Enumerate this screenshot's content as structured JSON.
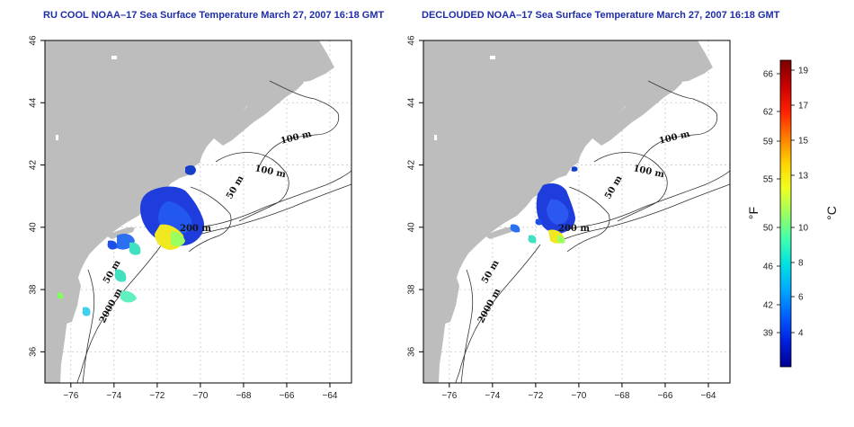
{
  "titles": {
    "left": "RU COOL NOAA–17 Sea Surface Temperature March 27, 2007 16:18 GMT",
    "right": "DECLOUDED NOAA–17 Sea Surface Temperature March 27, 2007 16:18 GMT"
  },
  "axes": {
    "lon_ticks": [
      -76,
      -74,
      -72,
      -70,
      -68,
      -66,
      -64
    ],
    "lat_ticks": [
      36,
      38,
      40,
      42,
      44,
      46
    ],
    "lon_range": [
      -77.2,
      -63.0
    ],
    "lat_range": [
      35.0,
      46.0
    ]
  },
  "contour_labels": [
    "100 m",
    "100 m",
    "50 m",
    "200 m",
    "50 m",
    "2000 m"
  ],
  "colorbar": {
    "fahrenheit_ticks": [
      "66",
      "62",
      "59",
      "55",
      "50",
      "46",
      "42",
      "39"
    ],
    "celsius_ticks": [
      "19",
      "17",
      "15",
      "13",
      "10",
      "8",
      "6",
      "4"
    ],
    "fahrenheit_unit": "°F",
    "celsius_unit": "°C",
    "colors": [
      "#7a0000",
      "#c80000",
      "#ff2000",
      "#ff7a00",
      "#ffd000",
      "#f0ff20",
      "#9cff60",
      "#40ffb0",
      "#00e0e0",
      "#00a8ff",
      "#0060ff",
      "#0020e0",
      "#000090"
    ]
  },
  "colors": {
    "land": "#bdbdbd",
    "ocean": "#ffffff",
    "grid": "#c8c8c8",
    "title": "#1f2ea8"
  }
}
